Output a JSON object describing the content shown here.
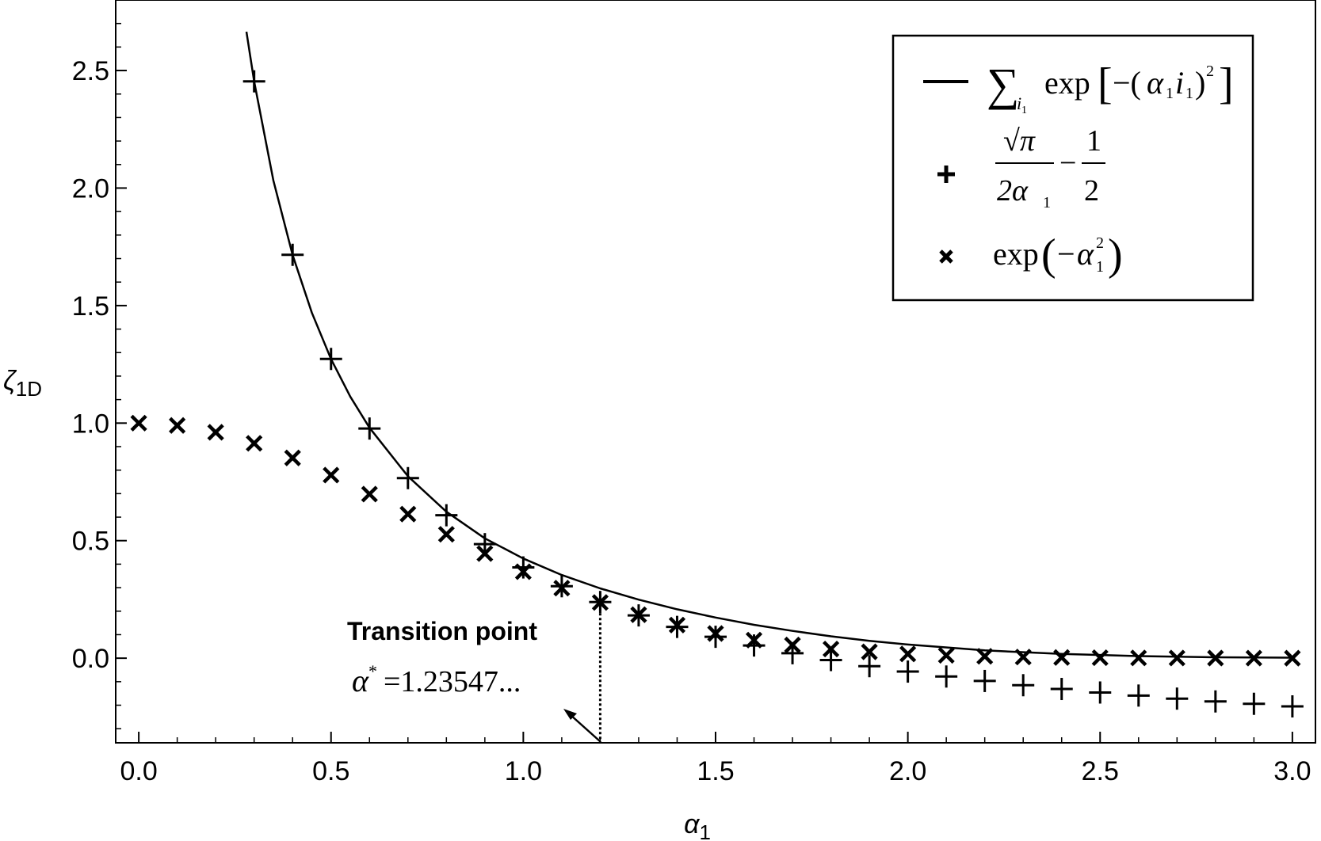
{
  "chart_data": {
    "type": "line",
    "title": "",
    "xlabel": "α",
    "xlabel_sub": "1",
    "ylabel": "ζ",
    "ylabel_sub": "1D",
    "xlim": [
      -0.06,
      3.06
    ],
    "ylim": [
      -0.36,
      2.8
    ],
    "x_ticks": [
      0.0,
      0.5,
      1.0,
      1.5,
      2.0,
      2.5,
      3.0
    ],
    "x_tick_labels": [
      "0.0",
      "0.5",
      "1.0",
      "1.5",
      "2.0",
      "2.5",
      "3.0"
    ],
    "y_ticks": [
      0.0,
      0.5,
      1.0,
      1.5,
      2.0,
      2.5
    ],
    "y_tick_labels": [
      "0.0",
      "0.5",
      "1.0",
      "1.5",
      "2.0",
      "2.5"
    ],
    "grid": false,
    "legend_position": "top-right",
    "series": [
      {
        "name": "∑ exp[−(α₁i₁)²]",
        "legend_main": "exp",
        "marker": "line",
        "x": [
          0.28,
          0.3,
          0.35,
          0.4,
          0.45,
          0.5,
          0.55,
          0.6,
          0.7,
          0.8,
          0.9,
          1.0,
          1.1,
          1.2,
          1.3,
          1.4,
          1.5,
          1.6,
          1.7,
          1.8,
          1.9,
          2.0,
          2.2,
          2.4,
          2.6,
          2.8,
          3.0
        ],
        "values": [
          2.665,
          2.454,
          2.032,
          1.716,
          1.47,
          1.273,
          1.113,
          0.98,
          0.774,
          0.623,
          0.51,
          0.424,
          0.354,
          0.297,
          0.249,
          0.208,
          0.173,
          0.142,
          0.116,
          0.093,
          0.074,
          0.058,
          0.033,
          0.018,
          0.009,
          0.004,
          0.002
        ]
      },
      {
        "name": "√π/(2α₁) − 1/2",
        "legend_num": "√π",
        "legend_den": "2α",
        "legend_minus": "−",
        "legend_num2": "1",
        "legend_den2": "2",
        "marker": "plus",
        "x": [
          0.3,
          0.4,
          0.5,
          0.6,
          0.7,
          0.8,
          0.9,
          1.0,
          1.1,
          1.2,
          1.3,
          1.4,
          1.5,
          1.6,
          1.7,
          1.8,
          1.9,
          2.0,
          2.1,
          2.2,
          2.3,
          2.4,
          2.5,
          2.6,
          2.7,
          2.8,
          2.9,
          3.0
        ],
        "values": [
          2.454,
          1.716,
          1.273,
          0.977,
          0.766,
          0.608,
          0.485,
          0.386,
          0.306,
          0.239,
          0.182,
          0.133,
          0.091,
          0.054,
          0.021,
          -0.008,
          -0.034,
          -0.057,
          -0.078,
          -0.097,
          -0.115,
          -0.131,
          -0.146,
          -0.159,
          -0.172,
          -0.184,
          -0.194,
          -0.205
        ]
      },
      {
        "name": "exp(−α₁²)",
        "legend_main": "exp",
        "marker": "cross",
        "x": [
          0.0,
          0.1,
          0.2,
          0.3,
          0.4,
          0.5,
          0.6,
          0.7,
          0.8,
          0.9,
          1.0,
          1.1,
          1.2,
          1.3,
          1.4,
          1.5,
          1.6,
          1.7,
          1.8,
          1.9,
          2.0,
          2.1,
          2.2,
          2.3,
          2.4,
          2.5,
          2.6,
          2.7,
          2.8,
          2.9,
          3.0
        ],
        "values": [
          1.0,
          0.99,
          0.961,
          0.914,
          0.852,
          0.779,
          0.698,
          0.613,
          0.527,
          0.445,
          0.368,
          0.298,
          0.237,
          0.185,
          0.141,
          0.105,
          0.077,
          0.056,
          0.039,
          0.027,
          0.018,
          0.012,
          0.008,
          0.005,
          0.003,
          0.002,
          0.001,
          0.0007,
          0.0004,
          0.0002,
          0.0001
        ]
      }
    ],
    "annotations": {
      "transition_label": "Transition point",
      "alpha_star_symbol": "α",
      "alpha_star_sup": "*",
      "alpha_star_value": "=1.23547...",
      "transition_x": 1.2
    }
  }
}
